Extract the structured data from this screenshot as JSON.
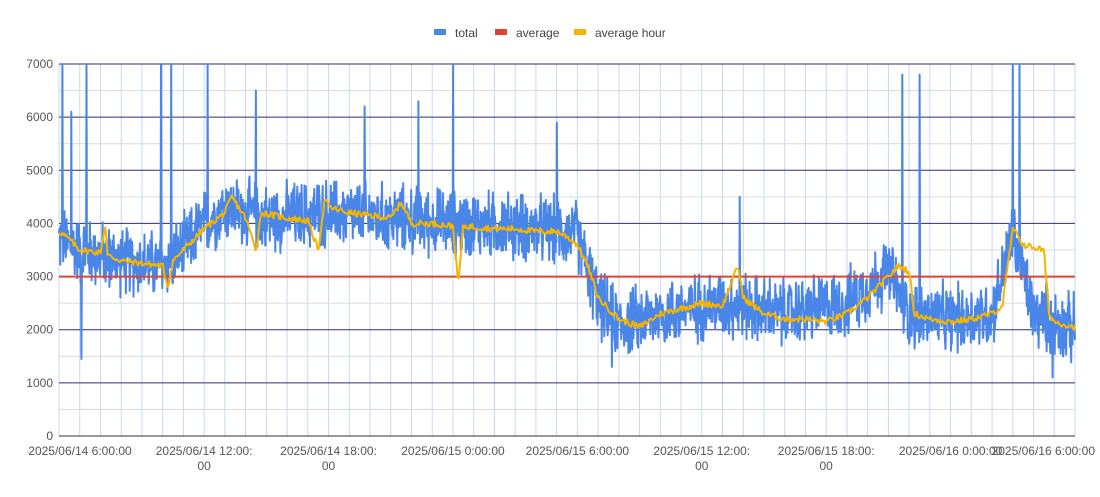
{
  "chart_data": {
    "type": "line",
    "title": "",
    "xlabel": "",
    "ylabel": "",
    "ylim": [
      0,
      7000
    ],
    "yticks": [
      0,
      1000,
      2000,
      3000,
      4000,
      5000,
      6000,
      7000
    ],
    "xlim": [
      "2025-06-14 05:00",
      "2025-06-16 06:00"
    ],
    "xtick_labels": [
      [
        "2025/06/14 6:00:00"
      ],
      [
        "2025/06/14 12:00:",
        "00"
      ],
      [
        "2025/06/14 18:00:",
        "00"
      ],
      [
        "2025/06/15 0:00:00"
      ],
      [
        "2025/06/15 6:00:00"
      ],
      [
        "2025/06/15 12:00:",
        "00"
      ],
      [
        "2025/06/15 18:00:",
        "00"
      ],
      [
        "2025/06/16 0:00:00"
      ],
      [
        "2025/06/16 6:00:00"
      ]
    ],
    "xtick_times": [
      "2025-06-14 06:00",
      "2025-06-14 12:00",
      "2025-06-14 18:00",
      "2025-06-15 00:00",
      "2025-06-15 06:00",
      "2025-06-15 12:00",
      "2025-06-15 18:00",
      "2025-06-16 00:00",
      "2025-06-16 06:00"
    ],
    "legend_position": "top",
    "grid": true,
    "series": [
      {
        "name": "total",
        "color": "#4a86e8",
        "trend": [
          [
            "2025-06-14 05:00",
            3700
          ],
          [
            "2025-06-14 06:00",
            3500
          ],
          [
            "2025-06-14 08:00",
            3300
          ],
          [
            "2025-06-14 10:00",
            3200
          ],
          [
            "2025-06-14 11:00",
            3500
          ],
          [
            "2025-06-14 12:00",
            4000
          ],
          [
            "2025-06-14 13:00",
            4300
          ],
          [
            "2025-06-14 15:00",
            4100
          ],
          [
            "2025-06-14 18:00",
            4200
          ],
          [
            "2025-06-14 21:00",
            4100
          ],
          [
            "2025-06-15 00:00",
            4000
          ],
          [
            "2025-06-15 03:00",
            3950
          ],
          [
            "2025-06-15 06:00",
            3800
          ],
          [
            "2025-06-15 07:00",
            2500
          ],
          [
            "2025-06-15 08:00",
            2100
          ],
          [
            "2025-06-15 10:00",
            2300
          ],
          [
            "2025-06-15 13:00",
            2500
          ],
          [
            "2025-06-15 16:00",
            2300
          ],
          [
            "2025-06-15 19:00",
            2500
          ],
          [
            "2025-06-15 21:00",
            3100
          ],
          [
            "2025-06-15 22:00",
            2300
          ],
          [
            "2025-06-16 00:00",
            2200
          ],
          [
            "2025-06-16 02:00",
            2300
          ],
          [
            "2025-06-16 03:00",
            3800
          ],
          [
            "2025-06-16 04:00",
            2300
          ],
          [
            "2025-06-16 06:00",
            2000
          ]
        ],
        "noise_amplitude": 550,
        "spikes": [
          [
            "2025-06-14 05:10",
            7000
          ],
          [
            "2025-06-14 05:35",
            6100
          ],
          [
            "2025-06-14 06:20",
            7000
          ],
          [
            "2025-06-14 06:05",
            1450
          ],
          [
            "2025-06-14 09:55",
            7000
          ],
          [
            "2025-06-14 10:25",
            7000
          ],
          [
            "2025-06-14 12:10",
            7000
          ],
          [
            "2025-06-14 14:30",
            6500
          ],
          [
            "2025-06-14 19:45",
            6200
          ],
          [
            "2025-06-14 22:20",
            6300
          ],
          [
            "2025-06-15 00:00",
            7000
          ],
          [
            "2025-06-15 05:00",
            5900
          ],
          [
            "2025-06-15 07:40",
            1300
          ],
          [
            "2025-06-15 13:50",
            4500
          ],
          [
            "2025-06-15 21:40",
            6800
          ],
          [
            "2025-06-15 22:30",
            6800
          ],
          [
            "2025-06-16 03:00",
            7000
          ],
          [
            "2025-06-16 03:20",
            7000
          ],
          [
            "2025-06-16 04:55",
            1100
          ]
        ]
      },
      {
        "name": "average",
        "color": "#db4437",
        "values": [
          [
            "2025-06-14 05:00",
            3000
          ],
          [
            "2025-06-16 06:00",
            3000
          ]
        ]
      },
      {
        "name": "average hour",
        "color": "#f4b400",
        "values": [
          [
            "2025-06-14 05:00",
            3850
          ],
          [
            "2025-06-14 05:30",
            3700
          ],
          [
            "2025-06-14 06:00",
            3500
          ],
          [
            "2025-06-14 07:00",
            3450
          ],
          [
            "2025-06-14 07:15",
            4000
          ],
          [
            "2025-06-14 07:20",
            3400
          ],
          [
            "2025-06-14 08:00",
            3300
          ],
          [
            "2025-06-14 09:00",
            3250
          ],
          [
            "2025-06-14 10:00",
            3200
          ],
          [
            "2025-06-14 10:15",
            2800
          ],
          [
            "2025-06-14 10:30",
            3300
          ],
          [
            "2025-06-14 11:00",
            3500
          ],
          [
            "2025-06-14 12:00",
            3900
          ],
          [
            "2025-06-14 13:00",
            4200
          ],
          [
            "2025-06-14 13:20",
            4500
          ],
          [
            "2025-06-14 14:00",
            4100
          ],
          [
            "2025-06-14 14:30",
            3500
          ],
          [
            "2025-06-14 14:45",
            4200
          ],
          [
            "2025-06-14 16:00",
            4100
          ],
          [
            "2025-06-14 17:00",
            4050
          ],
          [
            "2025-06-14 17:30",
            3500
          ],
          [
            "2025-06-14 17:50",
            4500
          ],
          [
            "2025-06-14 18:00",
            4300
          ],
          [
            "2025-06-14 19:00",
            4200
          ],
          [
            "2025-06-14 20:00",
            4150
          ],
          [
            "2025-06-14 21:00",
            4100
          ],
          [
            "2025-06-14 21:30",
            4400
          ],
          [
            "2025-06-14 22:00",
            4000
          ],
          [
            "2025-06-14 23:00",
            4000
          ],
          [
            "2025-06-15 00:00",
            3950
          ],
          [
            "2025-06-15 00:15",
            2850
          ],
          [
            "2025-06-15 00:30",
            3950
          ],
          [
            "2025-06-15 02:00",
            3900
          ],
          [
            "2025-06-15 03:00",
            3900
          ],
          [
            "2025-06-15 04:00",
            3850
          ],
          [
            "2025-06-15 05:00",
            3850
          ],
          [
            "2025-06-15 05:30",
            3750
          ],
          [
            "2025-06-15 06:00",
            3600
          ],
          [
            "2025-06-15 06:30",
            3200
          ],
          [
            "2025-06-15 07:00",
            2600
          ],
          [
            "2025-06-15 08:00",
            2200
          ],
          [
            "2025-06-15 09:00",
            2050
          ],
          [
            "2025-06-15 10:00",
            2300
          ],
          [
            "2025-06-15 11:00",
            2400
          ],
          [
            "2025-06-15 12:00",
            2500
          ],
          [
            "2025-06-15 13:00",
            2450
          ],
          [
            "2025-06-15 13:45",
            3200
          ],
          [
            "2025-06-15 14:00",
            2600
          ],
          [
            "2025-06-15 15:00",
            2300
          ],
          [
            "2025-06-15 16:00",
            2200
          ],
          [
            "2025-06-15 17:00",
            2200
          ],
          [
            "2025-06-15 18:00",
            2150
          ],
          [
            "2025-06-15 19:00",
            2300
          ],
          [
            "2025-06-15 20:00",
            2600
          ],
          [
            "2025-06-15 21:00",
            3000
          ],
          [
            "2025-06-15 21:30",
            3200
          ],
          [
            "2025-06-15 22:00",
            3100
          ],
          [
            "2025-06-15 22:15",
            2300
          ],
          [
            "2025-06-15 23:00",
            2200
          ],
          [
            "2025-06-16 00:00",
            2150
          ],
          [
            "2025-06-16 01:00",
            2200
          ],
          [
            "2025-06-16 02:00",
            2300
          ],
          [
            "2025-06-16 02:30",
            2450
          ],
          [
            "2025-06-16 03:00",
            3900
          ],
          [
            "2025-06-16 03:30",
            3600
          ],
          [
            "2025-06-16 04:30",
            3500
          ],
          [
            "2025-06-16 04:45",
            2300
          ],
          [
            "2025-06-16 05:00",
            2150
          ],
          [
            "2025-06-16 06:00",
            2050
          ]
        ]
      }
    ]
  },
  "legend": {
    "total": "total",
    "average": "average",
    "average_hour": "average hour"
  },
  "colors": {
    "gridline_major": "#2d2d7a",
    "gridline_vertical": "#c8d8f0",
    "axis_text": "#555555"
  }
}
